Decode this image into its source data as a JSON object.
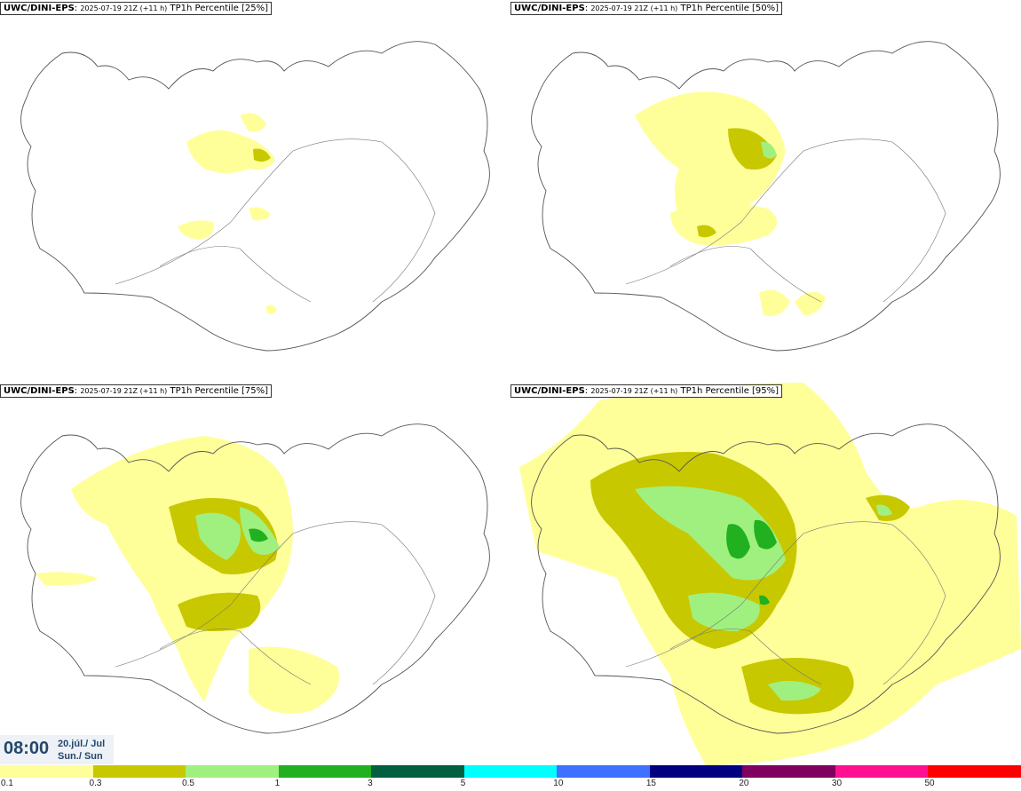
{
  "panels": [
    {
      "model": "UWC/DINI-EPS",
      "run": "2025-07-19 21Z (+11 h)",
      "label": "TP1h Percentile [25%]"
    },
    {
      "model": "UWC/DINI-EPS",
      "run": "2025-07-19 21Z (+11 h)",
      "label": "TP1h Percentile [50%]"
    },
    {
      "model": "UWC/DINI-EPS",
      "run": "2025-07-19 21Z (+11 h)",
      "label": "TP1h Percentile [75%]"
    },
    {
      "model": "UWC/DINI-EPS",
      "run": "2025-07-19 21Z (+11 h)",
      "label": "TP1h Percentile [95%]"
    }
  ],
  "valid_time": {
    "time": "08:00",
    "date_line1": "20.júl./ Jul",
    "date_line2": "Sun./ Sun"
  },
  "legend": {
    "colors": [
      "#ffff99",
      "#c8c800",
      "#a0f080",
      "#20b020",
      "#006040",
      "#00ffff",
      "#4070ff",
      "#000080",
      "#800060",
      "#ff1090",
      "#ff0000"
    ],
    "labels": [
      "0.1",
      "0.3",
      "0.5",
      "1",
      "3",
      "5",
      "10",
      "15",
      "20",
      "30",
      "50"
    ]
  }
}
